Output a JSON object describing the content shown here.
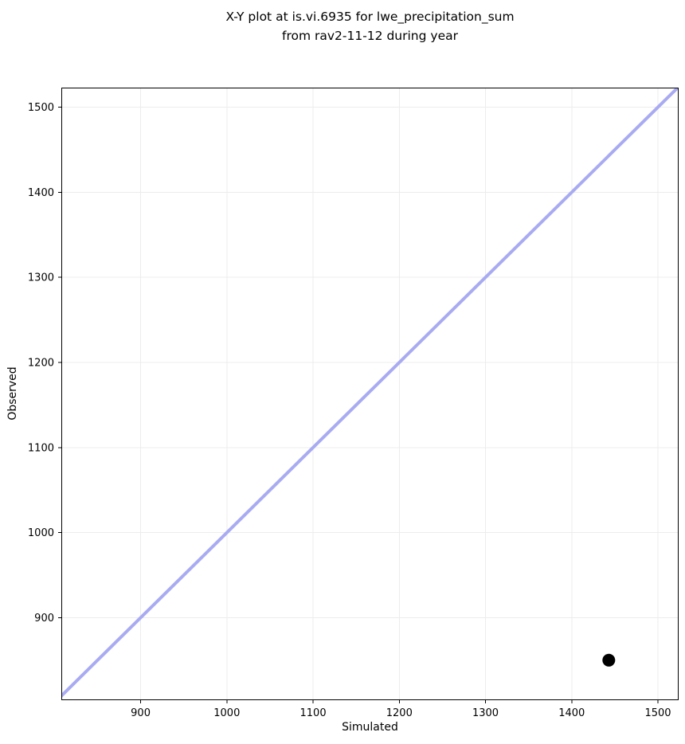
{
  "colors": {
    "background": "#ffffff",
    "identity_line": "#a9abf2",
    "marker": "#000000",
    "grid": "#ececec",
    "spine": "#000000",
    "tick": "#000000",
    "text": "#000000"
  },
  "chart_data": {
    "type": "scatter",
    "title": "X-Y plot at is.vi.6935 for lwe_precipitation_sum\nfrom rav2-11-12 during year",
    "title_line1": "X-Y plot at is.vi.6935 for lwe_precipitation_sum",
    "title_line2": "from rav2-11-12 during year",
    "xlabel": "Simulated",
    "ylabel": "Observed",
    "xlim": [
      808,
      1524
    ],
    "ylim": [
      803,
      1523
    ],
    "x_ticks": [
      900,
      1000,
      1100,
      1200,
      1300,
      1400,
      1500
    ],
    "y_ticks": [
      900,
      1000,
      1100,
      1200,
      1300,
      1400,
      1500
    ],
    "grid": true,
    "legend": false,
    "identity_line": {
      "present": true,
      "span": [
        780,
        1550
      ],
      "color": "#a9abf2",
      "stroke_width": 4
    },
    "series": [
      {
        "name": "observation-vs-simulation",
        "marker": "circle",
        "marker_radius": 8,
        "color": "#000000",
        "points": [
          {
            "simulated": 1443,
            "observed": 850
          }
        ]
      }
    ]
  }
}
